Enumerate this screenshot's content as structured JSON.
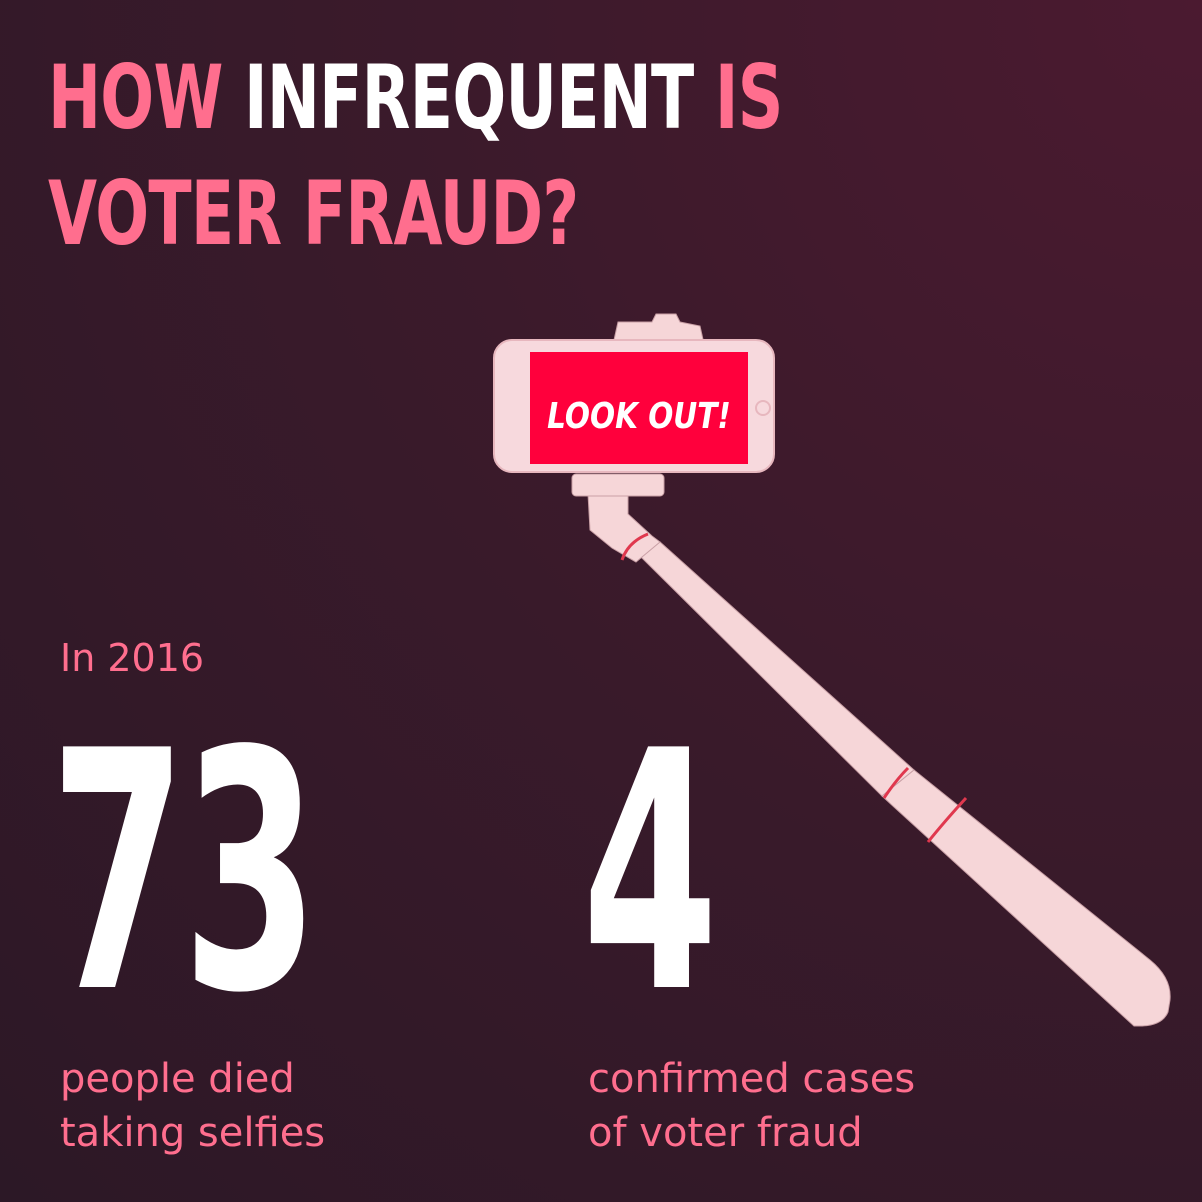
{
  "title": {
    "word1": "HOW",
    "word2": "INFREQUENT",
    "word3": "IS",
    "line2": "VOTER FRAUD?"
  },
  "phone_screen": "LOOK OUT!",
  "intro": "In 2016",
  "stats": [
    {
      "value": "73",
      "caption_line1": "people died",
      "caption_line2": "taking selfies"
    },
    {
      "value": "4",
      "caption_line1": "confirmed cases",
      "caption_line2": "of voter fraud"
    }
  ],
  "illustration": "selfie-stick-icon",
  "colors": {
    "accent_pink": "#ff6e8e",
    "screen_red": "#ff003c",
    "stick_pink": "#f6d6d8",
    "background": "#3b1a2b",
    "text_white": "#ffffff"
  }
}
